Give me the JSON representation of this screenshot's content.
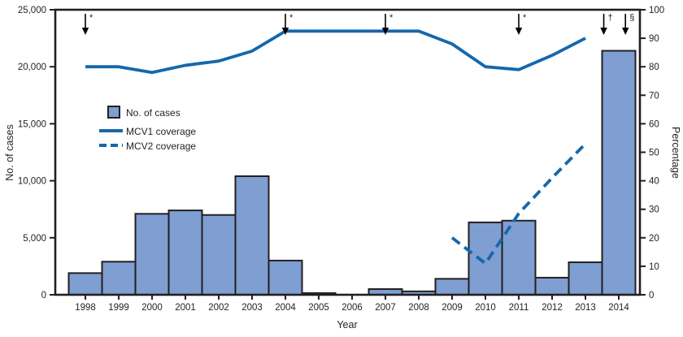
{
  "chart_data": {
    "type": "bar+line combo",
    "x": [
      1998,
      1999,
      2000,
      2001,
      2002,
      2003,
      2004,
      2005,
      2006,
      2007,
      2008,
      2009,
      2010,
      2011,
      2012,
      2013,
      2014
    ],
    "bars": {
      "name": "No. of cases",
      "values": [
        1900,
        2900,
        7100,
        7400,
        7000,
        10400,
        3000,
        150,
        0,
        500,
        300,
        1400,
        6350,
        6500,
        1500,
        2850,
        21400
      ]
    },
    "series": [
      {
        "name": "MCV1 coverage",
        "style": "solid",
        "x_start": 1998,
        "values": [
          80,
          80,
          78,
          80.5,
          82,
          85.5,
          92.5,
          92.5,
          92.5,
          92.5,
          92.5,
          88,
          80,
          79,
          84,
          90
        ]
      },
      {
        "name": "MCV2 coverage",
        "style": "dashed",
        "x_start": 2009,
        "values": [
          20,
          11,
          28.5,
          41,
          53
        ]
      }
    ],
    "left_axis": {
      "label": "No. of cases",
      "min": 0,
      "max": 25000,
      "tick_step": 5000,
      "tick_labels": [
        "0",
        "5,000",
        "10,000",
        "15,000",
        "20,000",
        "25,000"
      ]
    },
    "right_axis": {
      "label": "Percentage",
      "min": 0,
      "max": 100,
      "tick_step": 10,
      "tick_labels": [
        "0",
        "10",
        "20",
        "30",
        "40",
        "50",
        "60",
        "70",
        "80",
        "90",
        "100"
      ]
    },
    "x_axis": {
      "label": "Year"
    },
    "annotations": [
      {
        "year": 1998,
        "symbol": "*"
      },
      {
        "year": 2004,
        "symbol": "*"
      },
      {
        "year": 2007,
        "symbol": "*"
      },
      {
        "year": 2011,
        "symbol": "*"
      },
      {
        "year": 2013.55,
        "symbol": "†"
      },
      {
        "year": 2014.2,
        "symbol": "§"
      }
    ],
    "legend": {
      "items": [
        {
          "label": "No. of cases",
          "swatch": "square"
        },
        {
          "label": "MCV1 coverage",
          "swatch": "solid-line"
        },
        {
          "label": "MCV2 coverage",
          "swatch": "dashed-line"
        }
      ]
    },
    "colors": {
      "bar_fill": "#7f9ed2",
      "bar_border": "#231f20",
      "line": "#1667ac",
      "axis": "#231f20",
      "text": "#231f20"
    },
    "layout_hints": {
      "grid": false,
      "legend_position": "upper-left-inside",
      "frame": "full-box"
    }
  }
}
